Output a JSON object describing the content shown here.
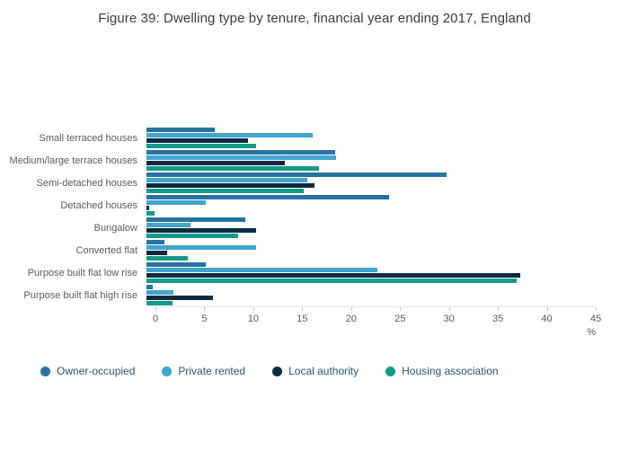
{
  "chart_data": {
    "type": "bar",
    "orientation": "horizontal",
    "title": "Figure 39: Dwelling type by tenure, financial year ending 2017, England",
    "xlabel": "%",
    "ylabel": "",
    "xlim": [
      0,
      45
    ],
    "xticks": [
      0,
      5,
      10,
      15,
      20,
      25,
      30,
      35,
      40,
      45
    ],
    "grid": false,
    "legend_position": "bottom",
    "categories": [
      "Small terraced houses",
      "Medium/large terrace houses",
      "Semi-detached houses",
      "Detached houses",
      "Bungalow",
      "Converted flat",
      "Purpose built flat low rise",
      "Purpose built flat high rise"
    ],
    "series": [
      {
        "name": "Owner-occupied",
        "color": "#2873a3",
        "values": [
          7.0,
          19.3,
          30.7,
          24.8,
          10.1,
          1.8,
          6.1,
          0.6
        ]
      },
      {
        "name": "Private rented",
        "color": "#41a5cd",
        "values": [
          17.0,
          19.4,
          16.4,
          6.1,
          4.5,
          11.2,
          23.6,
          2.8
        ]
      },
      {
        "name": "Local authority",
        "color": "#0b2b40",
        "values": [
          10.4,
          14.1,
          17.2,
          0.3,
          11.2,
          2.1,
          38.2,
          6.8
        ]
      },
      {
        "name": "Housing association",
        "color": "#169b88",
        "values": [
          11.2,
          17.6,
          16.1,
          0.8,
          9.4,
          4.2,
          37.8,
          2.7
        ]
      }
    ]
  }
}
